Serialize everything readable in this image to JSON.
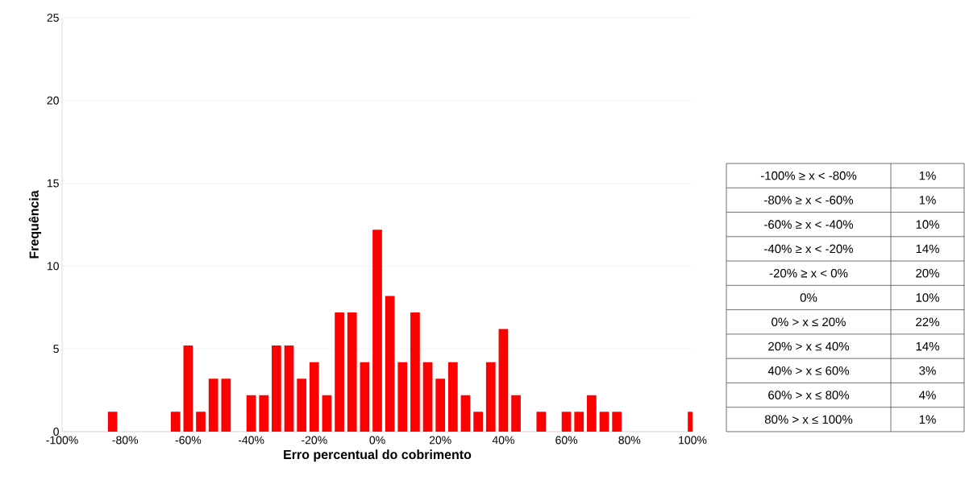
{
  "chart_data": [
    {
      "type": "bar",
      "xlabel": "Erro percentual do cobrimento",
      "ylabel": "Frequência",
      "color": "#ff0000",
      "grid": "y",
      "x": [
        -84,
        -64,
        -60,
        -56,
        -52,
        -48,
        -40,
        -36,
        -32,
        -28,
        -24,
        -20,
        -16,
        -12,
        -8,
        -4,
        0,
        4,
        8,
        12,
        16,
        20,
        24,
        28,
        32,
        36,
        40,
        44,
        52,
        60,
        64,
        68,
        72,
        76,
        100
      ],
      "values": [
        1.2,
        1.2,
        5.2,
        1.2,
        3.2,
        3.2,
        2.2,
        2.2,
        5.2,
        5.2,
        3.2,
        4.2,
        2.2,
        7.2,
        7.2,
        4.2,
        12.2,
        8.2,
        4.2,
        7.2,
        4.2,
        3.2,
        4.2,
        2.2,
        1.2,
        4.2,
        6.2,
        2.2,
        1.2,
        1.2,
        1.2,
        2.2,
        1.2,
        1.2,
        1.2
      ],
      "xlim": [
        -100,
        100
      ],
      "xticks": [
        {
          "value": -100,
          "label": "-100%"
        },
        {
          "value": -80,
          "label": "-80%"
        },
        {
          "value": -60,
          "label": "-60%"
        },
        {
          "value": -40,
          "label": "-40%"
        },
        {
          "value": -20,
          "label": "-20%"
        },
        {
          "value": 0,
          "label": "0%"
        },
        {
          "value": 20,
          "label": "20%"
        },
        {
          "value": 40,
          "label": "40%"
        },
        {
          "value": 60,
          "label": "60%"
        },
        {
          "value": 80,
          "label": "80%"
        },
        {
          "value": 100,
          "label": "100%"
        }
      ],
      "ylim": [
        0,
        25
      ],
      "yticks": [
        0,
        5,
        10,
        15,
        20,
        25
      ]
    },
    {
      "type": "other",
      "categories": [
        "-100% ≥ x < -80%",
        "-80% ≥ x < -60%",
        "-60% ≥ x < -40%",
        "-40% ≥ x < -20%",
        "-20% ≥ x < 0%",
        "0%",
        "0% > x ≤ 20%",
        "20% > x ≤ 40%",
        "40% > x ≤ 60%",
        "60% > x ≤ 80%",
        "80% > x ≤ 100%"
      ],
      "value_labels": [
        "1%",
        "1%",
        "10%",
        "14%",
        "20%",
        "10%",
        "22%",
        "14%",
        "3%",
        "4%",
        "1%"
      ]
    }
  ]
}
